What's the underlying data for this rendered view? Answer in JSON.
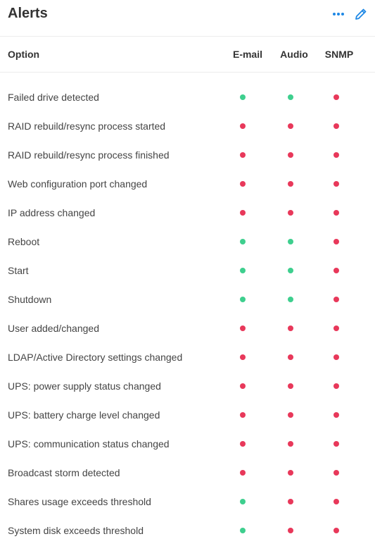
{
  "header": {
    "title": "Alerts",
    "more_icon": "more-horizontal-icon",
    "edit_icon": "pencil-icon"
  },
  "columns": {
    "option": "Option",
    "email": "E-mail",
    "audio": "Audio",
    "snmp": "SNMP"
  },
  "status_colors": {
    "enabled": "#3ecf8e",
    "disabled": "#e8385a"
  },
  "accent_color": "#1e88e5",
  "rows": [
    {
      "label": "Failed drive detected",
      "email": "enabled",
      "audio": "enabled",
      "snmp": "disabled"
    },
    {
      "label": "RAID rebuild/resync process started",
      "email": "disabled",
      "audio": "disabled",
      "snmp": "disabled"
    },
    {
      "label": "RAID rebuild/resync process finished",
      "email": "disabled",
      "audio": "disabled",
      "snmp": "disabled"
    },
    {
      "label": "Web configuration port changed",
      "email": "disabled",
      "audio": "disabled",
      "snmp": "disabled"
    },
    {
      "label": "IP address changed",
      "email": "disabled",
      "audio": "disabled",
      "snmp": "disabled"
    },
    {
      "label": "Reboot",
      "email": "enabled",
      "audio": "enabled",
      "snmp": "disabled"
    },
    {
      "label": "Start",
      "email": "enabled",
      "audio": "enabled",
      "snmp": "disabled"
    },
    {
      "label": "Shutdown",
      "email": "enabled",
      "audio": "enabled",
      "snmp": "disabled"
    },
    {
      "label": "User added/changed",
      "email": "disabled",
      "audio": "disabled",
      "snmp": "disabled"
    },
    {
      "label": "LDAP/Active Directory settings changed",
      "email": "disabled",
      "audio": "disabled",
      "snmp": "disabled"
    },
    {
      "label": "UPS: power supply status changed",
      "email": "disabled",
      "audio": "disabled",
      "snmp": "disabled"
    },
    {
      "label": "UPS: battery charge level changed",
      "email": "disabled",
      "audio": "disabled",
      "snmp": "disabled"
    },
    {
      "label": "UPS: communication status changed",
      "email": "disabled",
      "audio": "disabled",
      "snmp": "disabled"
    },
    {
      "label": "Broadcast storm detected",
      "email": "disabled",
      "audio": "disabled",
      "snmp": "disabled"
    },
    {
      "label": "Shares usage exceeds threshold",
      "email": "enabled",
      "audio": "disabled",
      "snmp": "disabled"
    },
    {
      "label": "System disk exceeds threshold",
      "email": "enabled",
      "audio": "disabled",
      "snmp": "disabled"
    }
  ]
}
